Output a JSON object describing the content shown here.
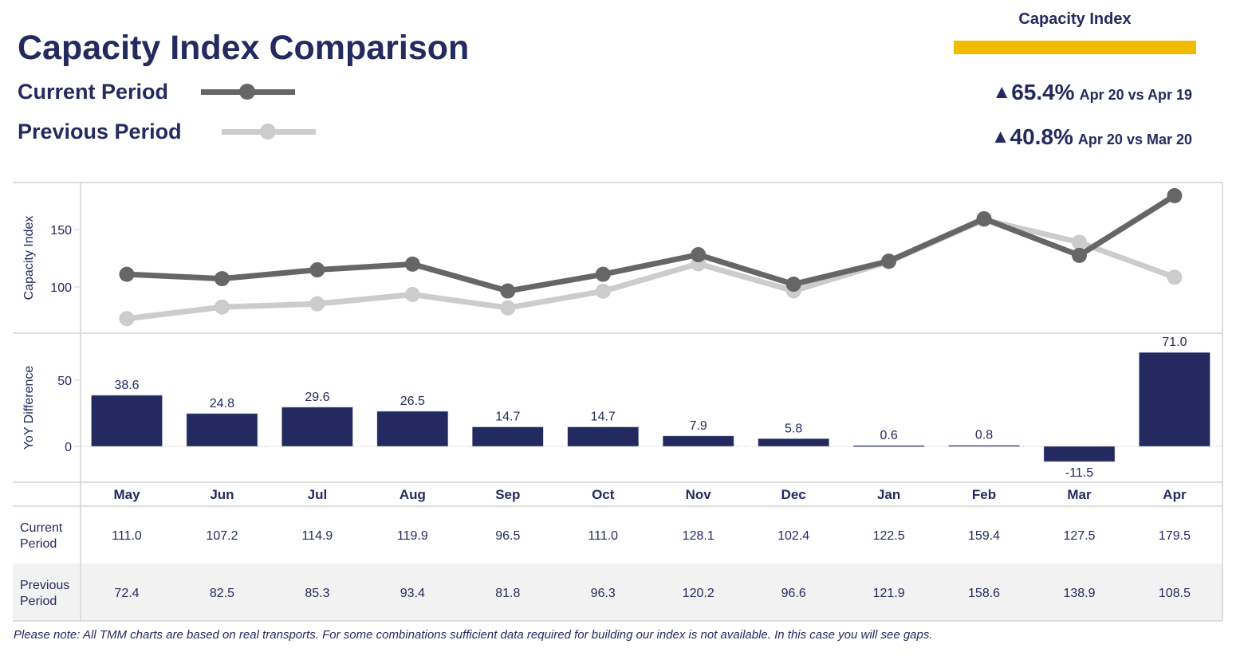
{
  "header": {
    "title": "Capacity Index Comparison",
    "legend": [
      {
        "label": "Current Period",
        "color": "#666666"
      },
      {
        "label": "Previous Period",
        "color": "#cccccc"
      }
    ]
  },
  "kpi": {
    "title": "Capacity Index",
    "accent_color": "#f0bb00",
    "items": [
      {
        "direction": "up",
        "icon": "triangle-up-icon",
        "glyph": "▲",
        "value": "65.4%",
        "comparison": "Apr 20 vs Apr 19"
      },
      {
        "direction": "up",
        "icon": "triangle-up-icon",
        "glyph": "▲",
        "value": "40.8%",
        "comparison": "Apr 20 vs Mar 20"
      }
    ]
  },
  "colors": {
    "text": "#232a5f",
    "bar": "#232a5f",
    "current_line": "#666666",
    "previous_line": "#cccccc",
    "grid": "#d4d4d4",
    "table_alt_row": "#f2f2f2"
  },
  "chart_data": [
    {
      "type": "line",
      "title": "Capacity Index Comparison",
      "ylabel": "Capacity Index",
      "xlabel": "",
      "categories": [
        "May",
        "Jun",
        "Jul",
        "Aug",
        "Sep",
        "Oct",
        "Nov",
        "Dec",
        "Jan",
        "Feb",
        "Mar",
        "Apr"
      ],
      "yticks": [
        100,
        150
      ],
      "ylim": [
        62,
        190
      ],
      "grid": false,
      "legend": "top-left",
      "series": [
        {
          "name": "Current Period",
          "values": [
            111.0,
            107.2,
            114.9,
            119.9,
            96.5,
            111.0,
            128.1,
            102.4,
            122.5,
            159.4,
            127.5,
            179.5
          ]
        },
        {
          "name": "Previous Period",
          "values": [
            72.4,
            82.5,
            85.3,
            93.4,
            81.8,
            96.3,
            120.2,
            96.6,
            121.9,
            158.6,
            138.9,
            108.5
          ]
        }
      ]
    },
    {
      "type": "bar",
      "ylabel": "YoY Difference",
      "xlabel": "",
      "categories": [
        "May",
        "Jun",
        "Jul",
        "Aug",
        "Sep",
        "Oct",
        "Nov",
        "Dec",
        "Jan",
        "Feb",
        "Mar",
        "Apr"
      ],
      "yticks": [
        0,
        50
      ],
      "ylim": [
        -27,
        85
      ],
      "values": [
        38.6,
        24.8,
        29.6,
        26.5,
        14.7,
        14.7,
        7.9,
        5.8,
        0.6,
        0.8,
        -11.5,
        71.0
      ],
      "value_labels": [
        "38.6",
        "24.8",
        "29.6",
        "26.5",
        "14.7",
        "14.7",
        "7.9",
        "5.8",
        "0.6",
        "0.8",
        "-11.5",
        "71.0"
      ]
    },
    {
      "type": "table",
      "columns": [
        "May",
        "Jun",
        "Jul",
        "Aug",
        "Sep",
        "Oct",
        "Nov",
        "Dec",
        "Jan",
        "Feb",
        "Mar",
        "Apr"
      ],
      "rows": [
        {
          "label_lines": [
            "Current",
            "Period"
          ],
          "values": [
            "111.0",
            "107.2",
            "114.9",
            "119.9",
            "96.5",
            "111.0",
            "128.1",
            "102.4",
            "122.5",
            "159.4",
            "127.5",
            "179.5"
          ]
        },
        {
          "label_lines": [
            "Previous",
            "Period"
          ],
          "values": [
            "72.4",
            "82.5",
            "85.3",
            "93.4",
            "81.8",
            "96.3",
            "120.2",
            "96.6",
            "121.9",
            "158.6",
            "138.9",
            "108.5"
          ]
        }
      ]
    }
  ],
  "footnote": "Please note: All TMM charts are based on real transports. For some combinations sufficient data required for building our index is not available. In this case you will see gaps."
}
